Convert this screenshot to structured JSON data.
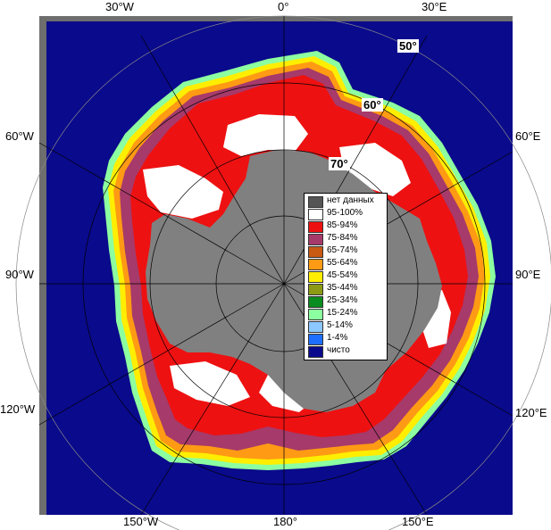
{
  "map": {
    "lon_labels": {
      "w30": "30°W",
      "zero": "0°",
      "e30": "30°E",
      "w60": "60°W",
      "e60": "60°E",
      "w90": "90°W",
      "e90": "90°E",
      "w120": "120°W",
      "e120": "120°E",
      "w150": "150°W",
      "e180": "180°",
      "e150": "150°E"
    },
    "lat_labels": {
      "l50": "50°",
      "l60": "60°",
      "l70": "70°"
    },
    "colors": {
      "ocean": "#0a0a8c",
      "land": "#808080",
      "frame": "#6e6e6e"
    }
  },
  "legend": {
    "items": [
      {
        "label": "нет данных",
        "color": "#555555"
      },
      {
        "label": "95-100%",
        "color": "#ffffff"
      },
      {
        "label": "85-94%",
        "color": "#ee1111"
      },
      {
        "label": "75-84%",
        "color": "#a63a6a"
      },
      {
        "label": "65-74%",
        "color": "#c85a14"
      },
      {
        "label": "55-64%",
        "color": "#ff9a14"
      },
      {
        "label": "45-54%",
        "color": "#ffee00"
      },
      {
        "label": "35-44%",
        "color": "#8c9a14"
      },
      {
        "label": "25-34%",
        "color": "#0a8c1e"
      },
      {
        "label": "15-24%",
        "color": "#8cffa0"
      },
      {
        "label": "5-14%",
        "color": "#8cc8ff"
      },
      {
        "label": "1-4%",
        "color": "#1e6eff"
      },
      {
        "label": "чисто",
        "color": "#0a0a8c"
      }
    ]
  }
}
